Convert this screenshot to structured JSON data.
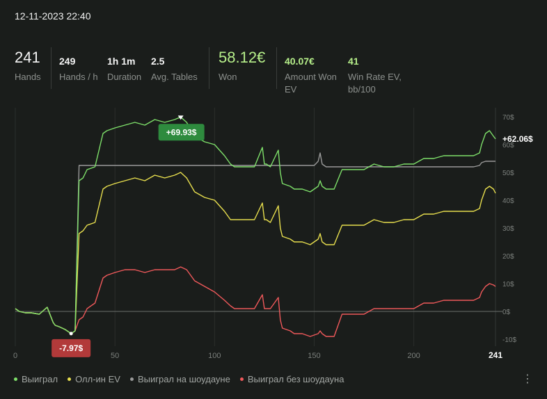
{
  "header": {
    "datetime": "12-11-2023 22:40"
  },
  "stats": [
    {
      "value": "241",
      "label": "Hands"
    },
    {
      "value": "249",
      "label": "Hands / h"
    },
    {
      "value": "1h 1m",
      "label": "Duration"
    },
    {
      "value": "2.5",
      "label": "Avg. Tables"
    },
    {
      "value": "58.12€",
      "label": "Won"
    },
    {
      "value": "40.07€",
      "label": "Amount Won EV"
    },
    {
      "value": "41",
      "label": "Win Rate EV, bb/100"
    }
  ],
  "chart_data": {
    "type": "line",
    "xlim": [
      0,
      241
    ],
    "ylim": [
      -10,
      70
    ],
    "x_ticks": [
      0,
      50,
      100,
      150,
      200
    ],
    "x_last_tick": "241",
    "y_ticks": [
      "-10$",
      "0$",
      "10$",
      "20$",
      "30$",
      "40$",
      "50$",
      "60$",
      "70$"
    ],
    "y_tick_values": [
      -10,
      0,
      10,
      20,
      30,
      40,
      50,
      60,
      70
    ],
    "end_label": "+62.06$",
    "max_annotation": {
      "x": 83,
      "y": 69.93,
      "text": "+69.93$"
    },
    "min_annotation": {
      "x": 28,
      "y": -7.97,
      "text": "-7.97$"
    },
    "series": [
      {
        "name": "Выиграл",
        "color": "#7ee06a",
        "x": [
          0,
          2,
          5,
          8,
          12,
          16,
          19,
          20,
          22,
          25,
          28,
          30,
          32,
          34,
          36,
          40,
          44,
          46,
          50,
          55,
          60,
          65,
          70,
          75,
          80,
          83,
          86,
          90,
          95,
          100,
          105,
          108,
          110,
          115,
          120,
          124,
          125,
          126,
          128,
          132,
          133,
          134,
          138,
          140,
          144,
          148,
          152,
          153,
          154,
          156,
          160,
          164,
          165,
          166,
          170,
          175,
          180,
          185,
          190,
          195,
          200,
          205,
          210,
          215,
          220,
          225,
          230,
          233,
          234,
          236,
          238,
          240,
          241
        ],
        "y": [
          1,
          0,
          -0.5,
          -0.5,
          -1,
          1.5,
          -4,
          -5,
          -5.5,
          -6.5,
          -7.97,
          -7,
          47,
          48,
          51,
          52,
          64,
          65,
          66,
          67,
          68,
          67,
          69,
          68,
          69,
          69.93,
          68,
          63,
          61,
          60,
          56,
          53,
          52,
          52,
          52,
          59,
          53,
          53,
          52,
          58,
          50,
          46,
          45,
          44,
          44,
          43,
          45,
          47,
          45,
          44,
          44,
          51,
          51,
          51,
          51,
          51,
          53,
          52,
          52,
          53,
          53,
          55,
          55,
          56,
          56,
          56,
          56,
          57,
          60,
          64,
          65,
          63,
          62.06
        ]
      },
      {
        "name": "Олл-ин EV",
        "color": "#e8df4e",
        "x": [
          0,
          2,
          5,
          8,
          12,
          16,
          19,
          20,
          22,
          25,
          28,
          30,
          32,
          34,
          36,
          40,
          44,
          46,
          50,
          55,
          60,
          65,
          70,
          75,
          80,
          83,
          86,
          90,
          95,
          100,
          105,
          108,
          110,
          115,
          120,
          124,
          125,
          126,
          128,
          132,
          133,
          134,
          138,
          140,
          144,
          148,
          152,
          153,
          154,
          156,
          160,
          164,
          165,
          166,
          170,
          175,
          180,
          185,
          190,
          195,
          200,
          205,
          210,
          215,
          220,
          225,
          230,
          233,
          234,
          236,
          238,
          240,
          241
        ],
        "y": [
          1,
          0,
          -0.5,
          -0.5,
          -1,
          1.5,
          -4,
          -5,
          -5.5,
          -6.5,
          -7.97,
          -7,
          28,
          29,
          31,
          32,
          44,
          45,
          46,
          47,
          48,
          47,
          49,
          48,
          49,
          50,
          48,
          43,
          41,
          40,
          36,
          33,
          33,
          33,
          33,
          39,
          33,
          33,
          32,
          38,
          30,
          27,
          26,
          25,
          25,
          24,
          26,
          28,
          25,
          24,
          24,
          31,
          31,
          31,
          31,
          31,
          33,
          32,
          32,
          33,
          33,
          35,
          35,
          36,
          36,
          36,
          36,
          37,
          40,
          44,
          45,
          44,
          42.5
        ]
      },
      {
        "name": "Выиграл на шоудауне",
        "color": "#9a9a9a",
        "x": [
          0,
          2,
          5,
          8,
          12,
          16,
          19,
          20,
          22,
          25,
          28,
          30,
          32,
          40,
          60,
          80,
          100,
          120,
          140,
          150,
          152,
          153,
          154,
          156,
          160,
          180,
          200,
          220,
          230,
          233,
          234,
          236,
          240,
          241
        ],
        "y": [
          1,
          0,
          -0.5,
          -0.5,
          -1,
          1.5,
          -4,
          -5,
          -5.5,
          -6.5,
          -7.97,
          -7,
          52.5,
          52.5,
          52.5,
          52.5,
          52.5,
          52.5,
          52.5,
          52.5,
          54,
          57,
          53,
          52,
          52,
          52,
          52,
          52,
          52,
          52.5,
          53.5,
          54,
          54,
          54
        ]
      },
      {
        "name": "Выиграл без шоудауна",
        "color": "#f0595b",
        "x": [
          0,
          2,
          5,
          8,
          12,
          16,
          19,
          20,
          22,
          25,
          28,
          30,
          32,
          34,
          36,
          40,
          44,
          46,
          50,
          55,
          60,
          65,
          70,
          75,
          80,
          83,
          86,
          90,
          95,
          100,
          105,
          108,
          110,
          115,
          120,
          124,
          125,
          126,
          128,
          132,
          133,
          134,
          138,
          140,
          144,
          148,
          152,
          153,
          154,
          156,
          160,
          164,
          165,
          166,
          170,
          175,
          180,
          185,
          190,
          195,
          200,
          205,
          210,
          215,
          220,
          225,
          230,
          233,
          234,
          236,
          238,
          240,
          241
        ],
        "y": [
          1,
          0,
          -0.5,
          -0.5,
          -1,
          1.5,
          -4,
          -5,
          -5.5,
          -6.5,
          -7.97,
          -7,
          -3,
          -2,
          1,
          3,
          12,
          13,
          14,
          15,
          15,
          14,
          15,
          15,
          15,
          16,
          15,
          11,
          9,
          7,
          4,
          2,
          1,
          1,
          1,
          6,
          1,
          1,
          1,
          5,
          -3,
          -6,
          -7,
          -8,
          -8,
          -9,
          -8,
          -7,
          -8,
          -9,
          -9,
          -1,
          -1,
          -1,
          -1,
          -1,
          1,
          1,
          1,
          1,
          1,
          3,
          3,
          4,
          4,
          4,
          4,
          5,
          7,
          9,
          10,
          9.5,
          9
        ]
      }
    ]
  }
}
